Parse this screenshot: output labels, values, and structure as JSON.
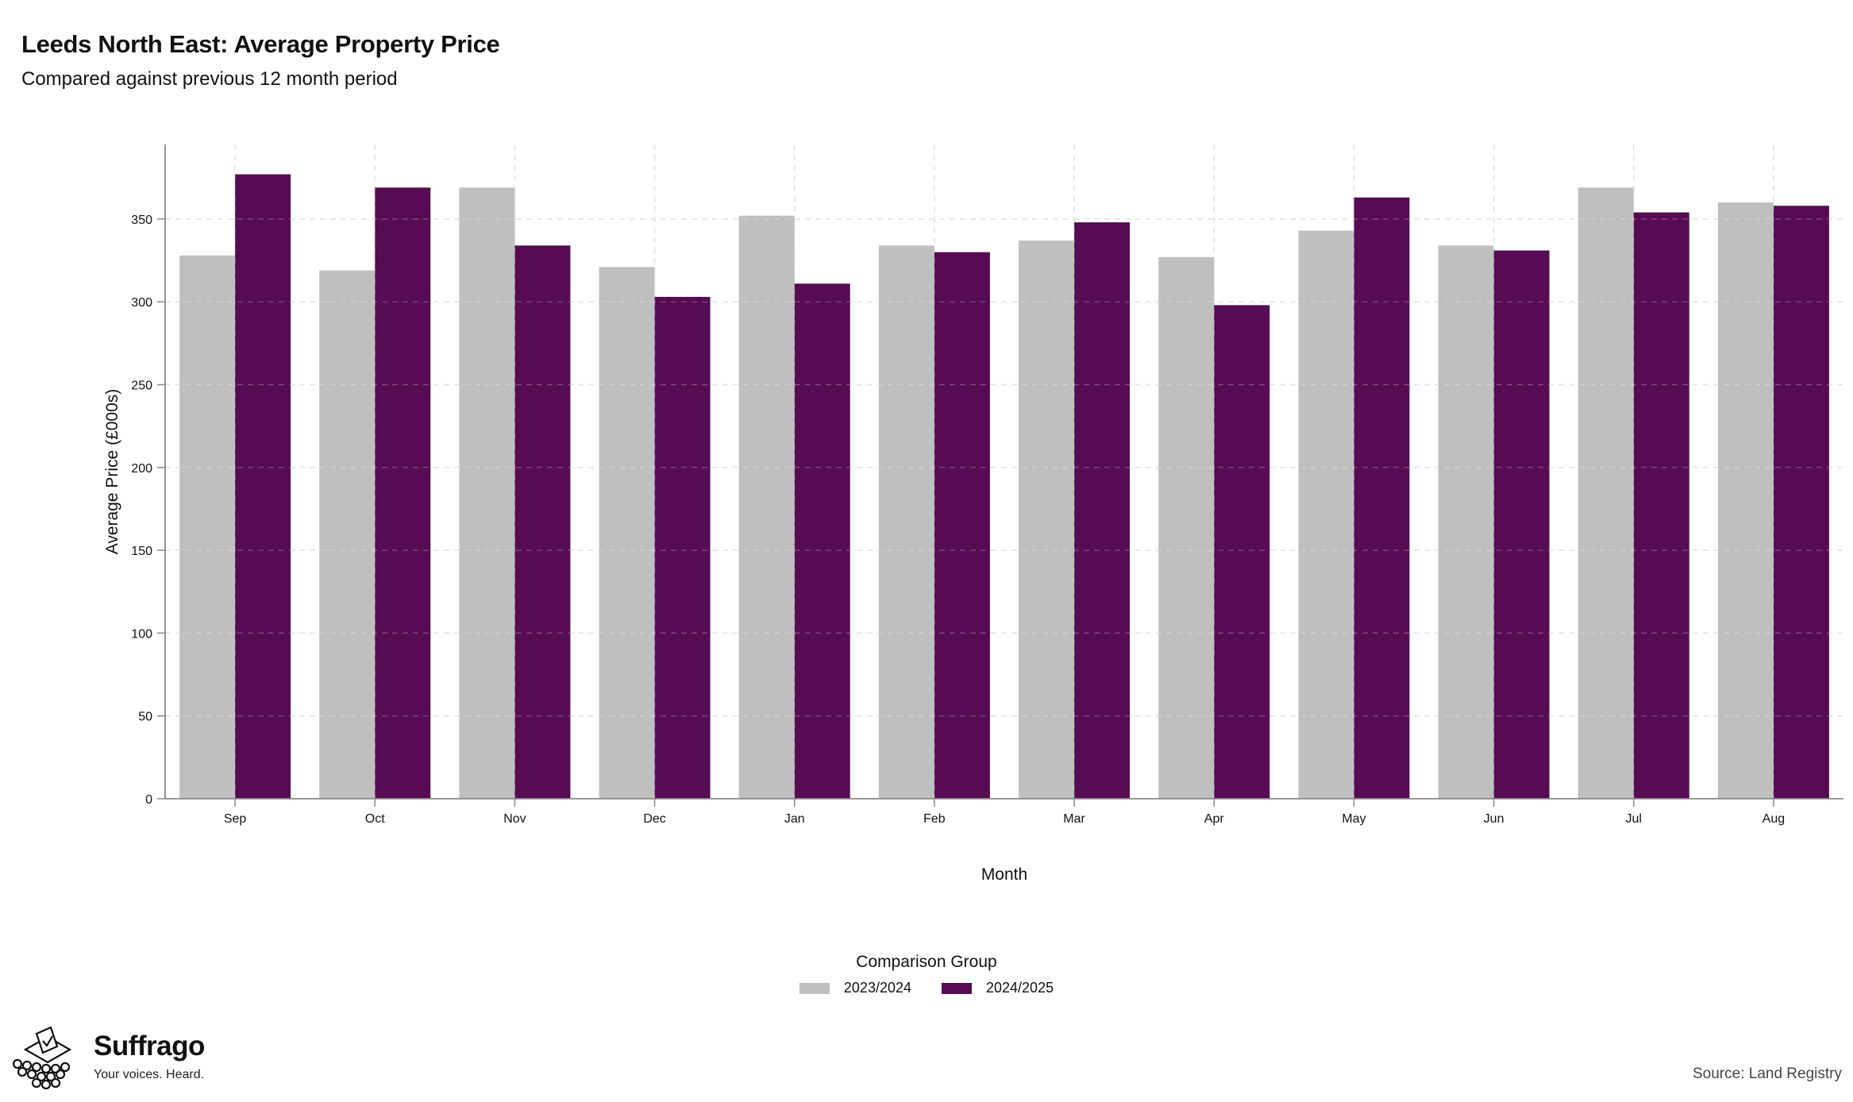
{
  "header": {
    "title": "Leeds North East: Average Property Price",
    "subtitle": "Compared against previous 12 month period"
  },
  "chart_data": {
    "type": "bar",
    "categories": [
      "Sep",
      "Oct",
      "Nov",
      "Dec",
      "Jan",
      "Feb",
      "Mar",
      "Apr",
      "May",
      "Jun",
      "Jul",
      "Aug"
    ],
    "series": [
      {
        "name": "2023/2024",
        "color": "#bfbfbf",
        "values": [
          328,
          319,
          369,
          321,
          352,
          334,
          337,
          327,
          343,
          334,
          369,
          360
        ]
      },
      {
        "name": "2024/2025",
        "color": "#560b53",
        "values": [
          377,
          369,
          334,
          303,
          311,
          330,
          348,
          298,
          363,
          331,
          354,
          358
        ]
      }
    ],
    "xlabel": "Month",
    "ylabel": "Average Price (£000s)",
    "ylim": [
      0,
      395
    ],
    "yticks": [
      0,
      50,
      100,
      150,
      200,
      250,
      300,
      350
    ],
    "grid": true,
    "legend_title": "Comparison Group",
    "legend_position": "bottom"
  },
  "footer": {
    "brand_name": "Suffrago",
    "brand_tagline": "Your voices. Heard.",
    "source": "Source: Land Registry"
  }
}
